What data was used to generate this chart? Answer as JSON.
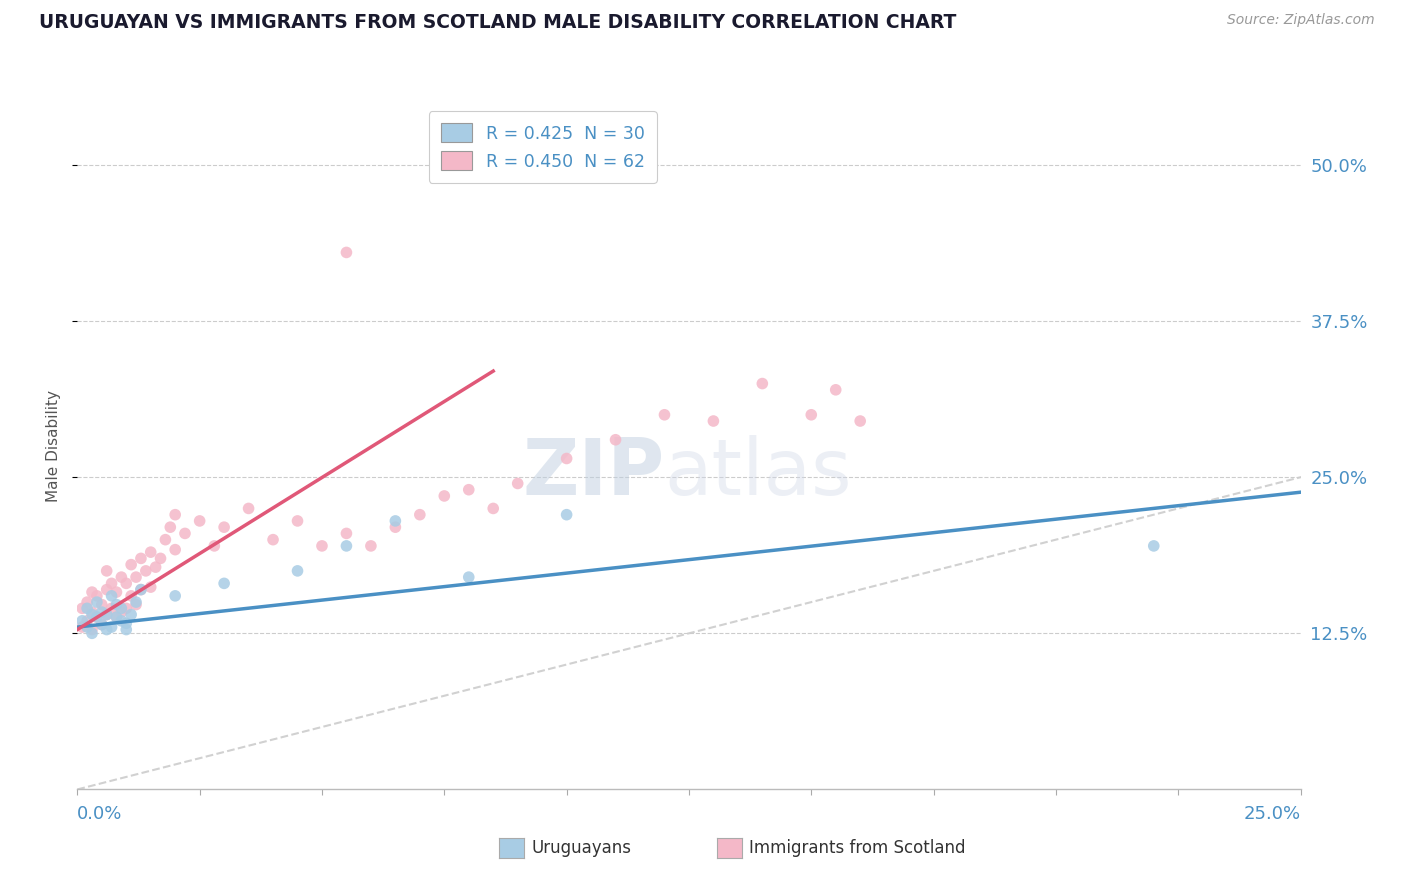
{
  "title": "URUGUAYAN VS IMMIGRANTS FROM SCOTLAND MALE DISABILITY CORRELATION CHART",
  "source": "Source: ZipAtlas.com",
  "ylabel": "Male Disability",
  "ylabel_tick_vals": [
    0.125,
    0.25,
    0.375,
    0.5
  ],
  "ylabel_tick_labels": [
    "12.5%",
    "25.0%",
    "37.5%",
    "50.0%"
  ],
  "xlim": [
    0.0,
    0.25
  ],
  "ylim": [
    0.0,
    0.55
  ],
  "legend1_label": "R = 0.425  N = 30",
  "legend2_label": "R = 0.450  N = 62",
  "blue_color": "#a8cce4",
  "pink_color": "#f4b8c8",
  "blue_line_color": "#4a90c4",
  "pink_line_color": "#e05878",
  "diag_color": "#cccccc",
  "watermark_zip": "ZIP",
  "watermark_atlas": "atlas",
  "uruguayan_x": [
    0.001,
    0.002,
    0.002,
    0.003,
    0.003,
    0.004,
    0.004,
    0.005,
    0.005,
    0.006,
    0.006,
    0.007,
    0.007,
    0.008,
    0.008,
    0.009,
    0.009,
    0.01,
    0.01,
    0.011,
    0.012,
    0.013,
    0.02,
    0.03,
    0.045,
    0.055,
    0.065,
    0.08,
    0.1,
    0.22
  ],
  "uruguayan_y": [
    0.135,
    0.13,
    0.145,
    0.125,
    0.14,
    0.138,
    0.15,
    0.132,
    0.142,
    0.128,
    0.14,
    0.155,
    0.13,
    0.148,
    0.138,
    0.135,
    0.145,
    0.133,
    0.128,
    0.14,
    0.15,
    0.16,
    0.155,
    0.165,
    0.175,
    0.195,
    0.215,
    0.17,
    0.22,
    0.195
  ],
  "scotland_x": [
    0.001,
    0.001,
    0.002,
    0.002,
    0.003,
    0.003,
    0.003,
    0.004,
    0.004,
    0.005,
    0.005,
    0.006,
    0.006,
    0.006,
    0.007,
    0.007,
    0.008,
    0.008,
    0.009,
    0.009,
    0.01,
    0.01,
    0.011,
    0.011,
    0.012,
    0.012,
    0.013,
    0.013,
    0.014,
    0.015,
    0.015,
    0.016,
    0.017,
    0.018,
    0.019,
    0.02,
    0.02,
    0.022,
    0.025,
    0.028,
    0.03,
    0.035,
    0.04,
    0.045,
    0.05,
    0.055,
    0.06,
    0.065,
    0.07,
    0.075,
    0.08,
    0.085,
    0.09,
    0.1,
    0.11,
    0.12,
    0.13,
    0.14,
    0.15,
    0.155,
    0.16,
    0.055
  ],
  "scotland_y": [
    0.13,
    0.145,
    0.135,
    0.15,
    0.128,
    0.142,
    0.158,
    0.138,
    0.155,
    0.132,
    0.148,
    0.14,
    0.16,
    0.175,
    0.145,
    0.165,
    0.138,
    0.158,
    0.142,
    0.17,
    0.145,
    0.165,
    0.155,
    0.18,
    0.148,
    0.17,
    0.16,
    0.185,
    0.175,
    0.162,
    0.19,
    0.178,
    0.185,
    0.2,
    0.21,
    0.192,
    0.22,
    0.205,
    0.215,
    0.195,
    0.21,
    0.225,
    0.2,
    0.215,
    0.195,
    0.205,
    0.195,
    0.21,
    0.22,
    0.235,
    0.24,
    0.225,
    0.245,
    0.265,
    0.28,
    0.3,
    0.295,
    0.325,
    0.3,
    0.32,
    0.295,
    0.43
  ],
  "pink_line_x": [
    0.0,
    0.085
  ],
  "pink_line_y": [
    0.128,
    0.335
  ],
  "blue_line_x": [
    0.0,
    0.25
  ],
  "blue_line_y": [
    0.13,
    0.238
  ]
}
